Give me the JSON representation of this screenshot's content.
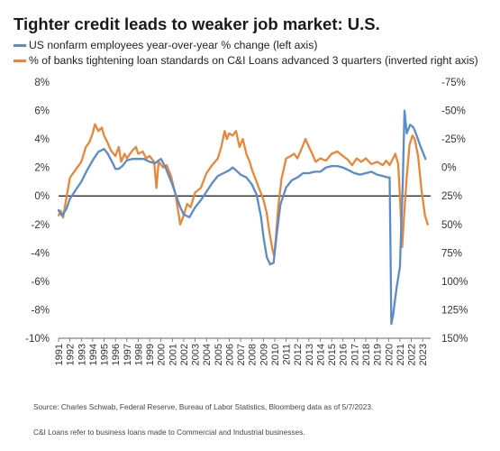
{
  "chart_data": {
    "type": "line",
    "title": "Tighter credit leads to weaker job market: U.S.",
    "x_ticks": [
      "1991",
      "1992",
      "1993",
      "1994",
      "1995",
      "1996",
      "1997",
      "1998",
      "1999",
      "2000",
      "2001",
      "2002",
      "2003",
      "2004",
      "2005",
      "2006",
      "2007",
      "2008",
      "2009",
      "2010",
      "2011",
      "2012",
      "2013",
      "2014",
      "2015",
      "2016",
      "2017",
      "2018",
      "2019",
      "2020",
      "2021",
      "2022",
      "2023"
    ],
    "xlim": [
      1991,
      2023.7
    ],
    "left_axis": {
      "ticks": [
        "8%",
        "6%",
        "4%",
        "2%",
        "0%",
        "-2%",
        "-4%",
        "-6%",
        "-8%",
        "-10%"
      ],
      "ylim": [
        -10,
        8
      ]
    },
    "right_axis": {
      "inverted": true,
      "ticks": [
        "-75%",
        "-50%",
        "-25%",
        "0%",
        "25%",
        "50%",
        "75%",
        "100%",
        "125%",
        "150%"
      ],
      "ylim": [
        -75,
        150
      ]
    },
    "grid": false,
    "zero_line": true,
    "series": [
      {
        "name": "US nonfarm employees year-over-year % change (left axis)",
        "axis": "left",
        "color": "#5b8bc9",
        "points": [
          [
            1991,
            -1.0
          ],
          [
            1991.3,
            -1.4
          ],
          [
            1991.7,
            -0.9
          ],
          [
            1992,
            -0.2
          ],
          [
            1992.5,
            0.4
          ],
          [
            1993,
            1.0
          ],
          [
            1993.5,
            1.8
          ],
          [
            1994,
            2.5
          ],
          [
            1994.5,
            3.1
          ],
          [
            1995,
            3.3
          ],
          [
            1995.3,
            3.0
          ],
          [
            1995.7,
            2.4
          ],
          [
            1996,
            1.9
          ],
          [
            1996.3,
            1.9
          ],
          [
            1996.6,
            2.1
          ],
          [
            1997,
            2.5
          ],
          [
            1997.5,
            2.6
          ],
          [
            1998,
            2.6
          ],
          [
            1998.5,
            2.6
          ],
          [
            1999,
            2.4
          ],
          [
            1999.5,
            2.3
          ],
          [
            1999.8,
            2.5
          ],
          [
            2000,
            2.6
          ],
          [
            2000.4,
            2.0
          ],
          [
            2000.8,
            1.2
          ],
          [
            2001,
            0.8
          ],
          [
            2001.3,
            0.1
          ],
          [
            2001.7,
            -0.8
          ],
          [
            2002,
            -1.3
          ],
          [
            2002.5,
            -1.5
          ],
          [
            2003,
            -0.8
          ],
          [
            2003.5,
            -0.3
          ],
          [
            2004,
            0.3
          ],
          [
            2004.5,
            0.9
          ],
          [
            2005,
            1.4
          ],
          [
            2005.5,
            1.6
          ],
          [
            2006,
            1.8
          ],
          [
            2006.3,
            2.0
          ],
          [
            2006.6,
            1.8
          ],
          [
            2007,
            1.5
          ],
          [
            2007.5,
            1.3
          ],
          [
            2008,
            0.8
          ],
          [
            2008.4,
            0.1
          ],
          [
            2008.8,
            -1.5
          ],
          [
            2009,
            -2.8
          ],
          [
            2009.3,
            -4.3
          ],
          [
            2009.6,
            -4.8
          ],
          [
            2009.9,
            -4.7
          ],
          [
            2010.2,
            -2.5
          ],
          [
            2010.5,
            -0.6
          ],
          [
            2011,
            0.6
          ],
          [
            2011.5,
            1.1
          ],
          [
            2012,
            1.3
          ],
          [
            2012.5,
            1.6
          ],
          [
            2013,
            1.6
          ],
          [
            2013.5,
            1.7
          ],
          [
            2014,
            1.7
          ],
          [
            2014.5,
            2.0
          ],
          [
            2015,
            2.1
          ],
          [
            2015.5,
            2.1
          ],
          [
            2016,
            2.0
          ],
          [
            2016.5,
            1.8
          ],
          [
            2017,
            1.6
          ],
          [
            2017.5,
            1.5
          ],
          [
            2018,
            1.6
          ],
          [
            2018.5,
            1.7
          ],
          [
            2019,
            1.5
          ],
          [
            2019.5,
            1.4
          ],
          [
            2019.9,
            1.3
          ],
          [
            2020.1,
            1.3
          ],
          [
            2020.25,
            -9.0
          ],
          [
            2020.4,
            -8.4
          ],
          [
            2020.7,
            -6.5
          ],
          [
            2021,
            -5.0
          ],
          [
            2021.25,
            1.0
          ],
          [
            2021.4,
            6.0
          ],
          [
            2021.6,
            4.4
          ],
          [
            2021.9,
            5.0
          ],
          [
            2022.2,
            4.8
          ],
          [
            2022.5,
            4.2
          ],
          [
            2022.8,
            3.5
          ],
          [
            2023,
            3.1
          ],
          [
            2023.25,
            2.6
          ]
        ]
      },
      {
        "name": "% of banks tightening loan standards on C&I Loans advanced 3 quarters (inverted right axis)",
        "axis": "right",
        "color": "#e8873a",
        "points": [
          [
            1991,
            42
          ],
          [
            1991.2,
            38
          ],
          [
            1991.4,
            44
          ],
          [
            1991.6,
            32
          ],
          [
            1992,
            9
          ],
          [
            1992.5,
            2
          ],
          [
            1993,
            -5
          ],
          [
            1993.4,
            -18
          ],
          [
            1993.7,
            -22
          ],
          [
            1994,
            -30
          ],
          [
            1994.2,
            -38
          ],
          [
            1994.5,
            -32
          ],
          [
            1994.8,
            -35
          ],
          [
            1995,
            -28
          ],
          [
            1995.3,
            -22
          ],
          [
            1995.6,
            -15
          ],
          [
            1996,
            -10
          ],
          [
            1996.3,
            -18
          ],
          [
            1996.5,
            -5
          ],
          [
            1996.8,
            -12
          ],
          [
            1997,
            -8
          ],
          [
            1997.5,
            -15
          ],
          [
            1997.8,
            -18
          ],
          [
            1998,
            -12
          ],
          [
            1998.4,
            -14
          ],
          [
            1998.7,
            -8
          ],
          [
            1999,
            -10
          ],
          [
            1999.4,
            -5
          ],
          [
            1999.6,
            18
          ],
          [
            1999.8,
            -5
          ],
          [
            2000.2,
            0
          ],
          [
            2000.5,
            -2
          ],
          [
            2000.9,
            8
          ],
          [
            2001.3,
            25
          ],
          [
            2001.7,
            50
          ],
          [
            2002,
            42
          ],
          [
            2002.3,
            32
          ],
          [
            2002.6,
            35
          ],
          [
            2003,
            22
          ],
          [
            2003.5,
            18
          ],
          [
            2004,
            5
          ],
          [
            2004.5,
            -2
          ],
          [
            2005,
            -8
          ],
          [
            2005.3,
            -18
          ],
          [
            2005.6,
            -32
          ],
          [
            2005.8,
            -25
          ],
          [
            2006,
            -30
          ],
          [
            2006.3,
            -28
          ],
          [
            2006.6,
            -32
          ],
          [
            2006.9,
            -18
          ],
          [
            2007.2,
            -25
          ],
          [
            2007.5,
            -12
          ],
          [
            2007.8,
            -5
          ],
          [
            2008,
            2
          ],
          [
            2008.5,
            15
          ],
          [
            2009,
            28
          ],
          [
            2009.3,
            40
          ],
          [
            2009.5,
            55
          ],
          [
            2009.8,
            72
          ],
          [
            2009.95,
            78
          ],
          [
            2010.1,
            62
          ],
          [
            2010.3,
            35
          ],
          [
            2010.6,
            10
          ],
          [
            2011,
            -8
          ],
          [
            2011.4,
            -10
          ],
          [
            2011.7,
            -12
          ],
          [
            2012,
            -8
          ],
          [
            2012.3,
            -15
          ],
          [
            2012.7,
            -25
          ],
          [
            2013,
            -18
          ],
          [
            2013.3,
            -12
          ],
          [
            2013.6,
            -5
          ],
          [
            2014,
            -8
          ],
          [
            2014.5,
            -6
          ],
          [
            2015,
            -12
          ],
          [
            2015.5,
            -14
          ],
          [
            2016,
            -10
          ],
          [
            2016.4,
            -7
          ],
          [
            2016.8,
            -2
          ],
          [
            2017.2,
            -8
          ],
          [
            2017.6,
            -5
          ],
          [
            2018,
            -8
          ],
          [
            2018.5,
            -3
          ],
          [
            2019,
            -5
          ],
          [
            2019.5,
            -2
          ],
          [
            2019.8,
            -6
          ],
          [
            2020.1,
            -2
          ],
          [
            2020.4,
            -8
          ],
          [
            2020.6,
            -12
          ],
          [
            2020.85,
            -3
          ],
          [
            2021,
            25
          ],
          [
            2021.2,
            70
          ],
          [
            2021.35,
            45
          ],
          [
            2021.6,
            8
          ],
          [
            2021.85,
            -20
          ],
          [
            2022.1,
            -28
          ],
          [
            2022.3,
            -25
          ],
          [
            2022.6,
            -10
          ],
          [
            2022.9,
            20
          ],
          [
            2023.2,
            42
          ],
          [
            2023.45,
            50
          ]
        ]
      }
    ]
  },
  "legend": [
    {
      "label": "US nonfarm employees year-over-year % change (left axis)",
      "color": "#5b8bc9"
    },
    {
      "label": "% of banks tightening loan standards on C&I Loans advanced 3 quarters (inverted right axis)",
      "color": "#e8873a"
    }
  ],
  "footnotes": {
    "source": "Source: Charles Schwab, Federal Reserve, Bureau of Labor Statistics, Bloomberg data as of 5/7/2023.",
    "ci_note": "C&I Loans refer to business loans made to Commercial and Industrial businesses."
  }
}
